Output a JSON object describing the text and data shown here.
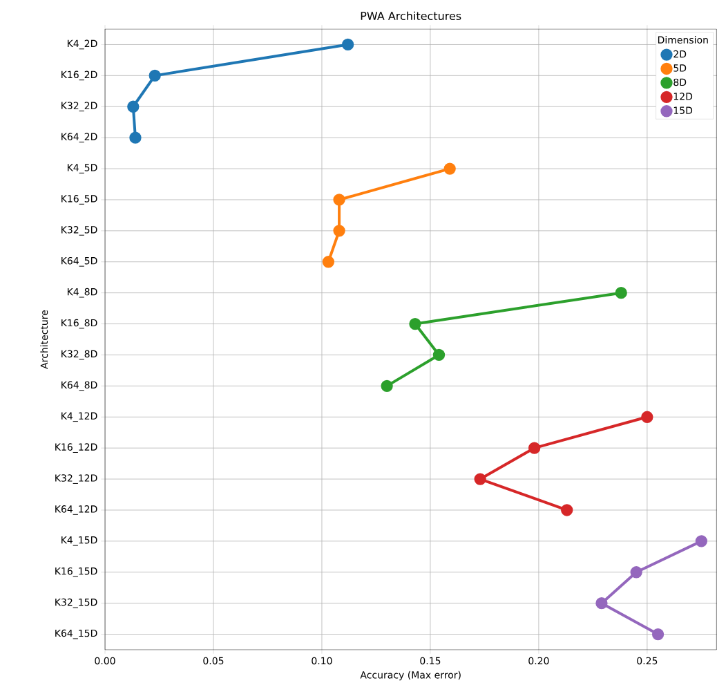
{
  "chart_data": {
    "type": "line",
    "orientation": "horizontal",
    "title": "PWA Architectures",
    "xlabel": "Accuracy (Max error)",
    "ylabel": "Architecture",
    "legend_title": "Dimension",
    "legend": "top right",
    "grid": true,
    "marker": "circle",
    "line_style": "solid",
    "categories": [
      "K4_2D",
      "K16_2D",
      "K32_2D",
      "K64_2D",
      "K4_5D",
      "K16_5D",
      "K32_5D",
      "K64_5D",
      "K4_8D",
      "K16_8D",
      "K32_8D",
      "K64_8D",
      "K4_12D",
      "K16_12D",
      "K32_12D",
      "K64_12D",
      "K4_15D",
      "K16_15D",
      "K32_15D",
      "K64_15D"
    ],
    "xlim": [
      0,
      0.282
    ],
    "xticks": [
      {
        "value": 0,
        "label": "0.00"
      },
      {
        "value": 0.05,
        "label": "0.05"
      },
      {
        "value": 0.1,
        "label": "0.10"
      },
      {
        "value": 0.15,
        "label": "0.15"
      },
      {
        "value": 0.2,
        "label": "0.20"
      },
      {
        "value": 0.25,
        "label": "0.25"
      }
    ],
    "series": [
      {
        "name": "2D",
        "color": "#1f77b4",
        "values": [
          0.112,
          0.023,
          0.013,
          0.014,
          null,
          null,
          null,
          null,
          null,
          null,
          null,
          null,
          null,
          null,
          null,
          null,
          null,
          null,
          null,
          null
        ]
      },
      {
        "name": "5D",
        "color": "#ff7f0e",
        "values": [
          null,
          null,
          null,
          null,
          0.159,
          0.108,
          0.108,
          0.103,
          null,
          null,
          null,
          null,
          null,
          null,
          null,
          null,
          null,
          null,
          null,
          null
        ]
      },
      {
        "name": "8D",
        "color": "#2ca02c",
        "values": [
          null,
          null,
          null,
          null,
          null,
          null,
          null,
          null,
          0.238,
          0.143,
          0.154,
          0.13,
          null,
          null,
          null,
          null,
          null,
          null,
          null,
          null
        ]
      },
      {
        "name": "12D",
        "color": "#d62728",
        "values": [
          null,
          null,
          null,
          null,
          null,
          null,
          null,
          null,
          null,
          null,
          null,
          null,
          0.25,
          0.198,
          0.173,
          0.213,
          null,
          null,
          null,
          null
        ]
      },
      {
        "name": "15D",
        "color": "#9467bd",
        "values": [
          null,
          null,
          null,
          null,
          null,
          null,
          null,
          null,
          null,
          null,
          null,
          null,
          null,
          null,
          null,
          null,
          0.275,
          0.245,
          0.229,
          0.255
        ]
      }
    ]
  }
}
